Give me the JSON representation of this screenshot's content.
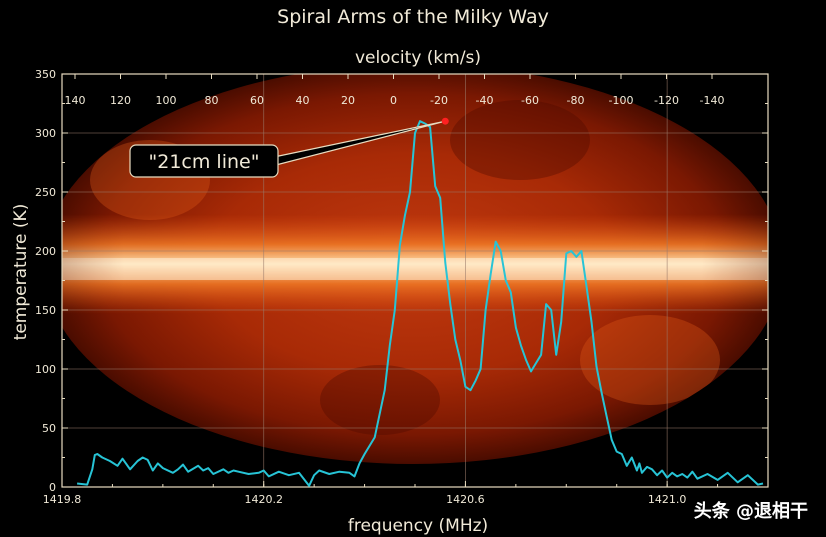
{
  "colors": {
    "background": "#000000",
    "series": "#27c4d6",
    "grid": "#9a7a6a",
    "peak_marker": "#ff2020",
    "frame": "#e8dcc0"
  },
  "chart_data": {
    "type": "line",
    "title": "Spiral Arms of the Milky Way",
    "xlabel": "frequency (MHz)",
    "ylabel": "temperature (K)",
    "x2label": "velocity (km/s)",
    "xlim": [
      1419.8,
      1421.2
    ],
    "ylim": [
      0,
      350
    ],
    "xticks": [
      1419.8,
      1420.2,
      1420.6,
      1421.0
    ],
    "xticklabels": [
      "1419.8",
      "1420.2",
      "1420.6",
      "1421.0"
    ],
    "yticks": [
      0,
      50,
      100,
      150,
      200,
      250,
      300,
      350
    ],
    "yticklabels": [
      "0",
      "50",
      "100",
      "150",
      "200",
      "250",
      "300",
      "350"
    ],
    "x2ticks": [
      "140",
      "120",
      "100",
      "80",
      "60",
      "40",
      "20",
      "0",
      "-20",
      "-40",
      "-60",
      "-80",
      "-100",
      "-120",
      "-140"
    ],
    "grid": true,
    "background_image": "Milky Way all-sky hydrogen map",
    "annotation": {
      "text": "\"21cm line\"",
      "x": 1420.56,
      "y": 310
    },
    "series": [
      {
        "x": [
          1419.83,
          1419.85,
          1419.86,
          1419.865,
          1419.87,
          1419.88,
          1419.895,
          1419.91,
          1419.92,
          1419.935,
          1419.95,
          1419.96,
          1419.97,
          1419.98,
          1419.99,
          1420.0,
          1420.02,
          1420.03,
          1420.04,
          1420.05,
          1420.07,
          1420.08,
          1420.09,
          1420.1,
          1420.12,
          1420.13,
          1420.14,
          1420.15,
          1420.17,
          1420.19,
          1420.2,
          1420.21,
          1420.23,
          1420.25,
          1420.27,
          1420.29,
          1420.3,
          1420.31,
          1420.33,
          1420.35,
          1420.37,
          1420.38,
          1420.39,
          1420.4,
          1420.42,
          1420.44,
          1420.45,
          1420.46,
          1420.47,
          1420.48,
          1420.49,
          1420.5,
          1420.51,
          1420.52,
          1420.53,
          1420.54,
          1420.55,
          1420.56,
          1420.57,
          1420.58,
          1420.59,
          1420.6,
          1420.61,
          1420.62,
          1420.63,
          1420.64,
          1420.65,
          1420.66,
          1420.67,
          1420.68,
          1420.69,
          1420.7,
          1420.71,
          1420.72,
          1420.73,
          1420.74,
          1420.75,
          1420.76,
          1420.77,
          1420.78,
          1420.79,
          1420.8,
          1420.81,
          1420.82,
          1420.83,
          1420.84,
          1420.85,
          1420.86,
          1420.87,
          1420.88,
          1420.89,
          1420.9,
          1420.91,
          1420.92,
          1420.93,
          1420.94,
          1420.945,
          1420.95,
          1420.96,
          1420.97,
          1420.98,
          1420.99,
          1421.0,
          1421.01,
          1421.02,
          1421.03,
          1421.04,
          1421.05,
          1421.06,
          1421.08,
          1421.1,
          1421.12,
          1421.14,
          1421.16,
          1421.18,
          1421.19
        ],
        "values": [
          3,
          2,
          15,
          27,
          28,
          25,
          22,
          18,
          24,
          15,
          22,
          25,
          23,
          14,
          20,
          16,
          12,
          15,
          19,
          13,
          18,
          14,
          16,
          11,
          15,
          12,
          14,
          13,
          11,
          12,
          14,
          9,
          13,
          10,
          12,
          1,
          10,
          14,
          11,
          13,
          12,
          9,
          20,
          28,
          42,
          82,
          120,
          150,
          205,
          230,
          250,
          300,
          310,
          308,
          305,
          255,
          245,
          190,
          155,
          125,
          107,
          85,
          82,
          90,
          100,
          150,
          180,
          208,
          200,
          175,
          165,
          135,
          120,
          108,
          98,
          105,
          112,
          155,
          150,
          112,
          140,
          198,
          200,
          195,
          200,
          170,
          140,
          102,
          80,
          60,
          40,
          30,
          28,
          18,
          25,
          14,
          20,
          12,
          17,
          15,
          10,
          14,
          8,
          12,
          9,
          11,
          8,
          13,
          7,
          11,
          6,
          12,
          4,
          10,
          2,
          3
        ]
      }
    ]
  },
  "watermark": "头条 @退相干"
}
